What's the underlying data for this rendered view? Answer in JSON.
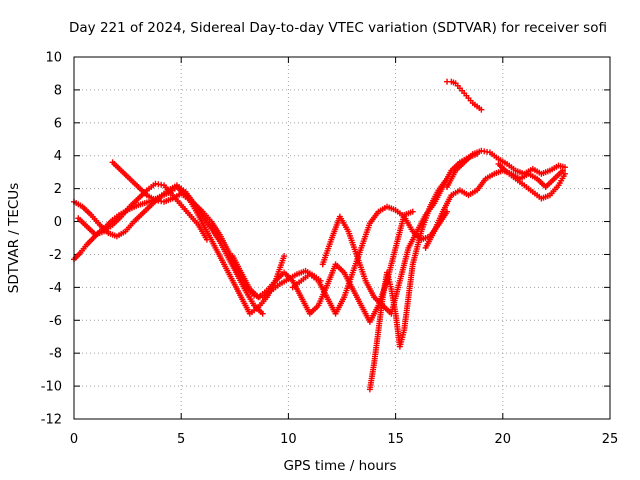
{
  "chart_data": {
    "type": "scatter",
    "title": "Day 221 of 2024, Sidereal Day-to-day VTEC variation (SDTVAR) for receiver sofi",
    "xlabel": "GPS time / hours",
    "ylabel": "SDTVAR / TECUs",
    "xlim": [
      0,
      25
    ],
    "ylim": [
      -12,
      10
    ],
    "xticks": [
      0,
      5,
      10,
      15,
      20,
      25
    ],
    "yticks": [
      -12,
      -10,
      -8,
      -6,
      -4,
      -2,
      0,
      2,
      4,
      6,
      8,
      10
    ],
    "xtick_labels": [
      "0",
      "5",
      "10",
      "15",
      "20",
      "25"
    ],
    "ytick_labels": [
      "-12",
      "-10",
      "-8",
      "-6",
      "-4",
      "-2",
      "0",
      "2",
      "4",
      "6",
      "8",
      "10"
    ],
    "grid": true,
    "marker": "+",
    "color": "#ff0000",
    "series": [
      {
        "name": "arc-1",
        "x": [
          0.0,
          0.3,
          0.6,
          0.9,
          1.2,
          1.5,
          1.8,
          2.1,
          2.5,
          3.0,
          3.5,
          4.0,
          4.5,
          4.8,
          5.2,
          5.6,
          6.0,
          6.4,
          6.8,
          7.2,
          7.6,
          8.0,
          8.4,
          8.8,
          9.2,
          9.6,
          10.0,
          10.4,
          10.8,
          11.2,
          11.5
        ],
        "y": [
          -2.3,
          -1.9,
          -1.4,
          -1.0,
          -0.6,
          -0.3,
          0.1,
          0.4,
          0.7,
          1.0,
          1.2,
          1.5,
          1.8,
          2.1,
          1.6,
          1.1,
          0.6,
          0.0,
          -0.8,
          -1.8,
          -2.9,
          -3.9,
          -4.5,
          -4.6,
          -4.2,
          -3.8,
          -3.5,
          -3.2,
          -3.0,
          -3.3,
          -3.6
        ]
      },
      {
        "name": "arc-2",
        "x": [
          0.0,
          0.4,
          0.8,
          1.2,
          1.6,
          2.0,
          2.4,
          2.8,
          3.2,
          3.6,
          4.0,
          4.4,
          4.8,
          5.2,
          5.6,
          6.0,
          6.4,
          6.8,
          7.2,
          7.6,
          8.0,
          8.4,
          8.8
        ],
        "y": [
          1.2,
          0.9,
          0.4,
          -0.2,
          -0.7,
          -0.9,
          -0.6,
          0.0,
          0.5,
          1.0,
          1.5,
          1.9,
          2.2,
          1.8,
          1.1,
          0.3,
          -0.4,
          -1.2,
          -2.2,
          -3.2,
          -4.2,
          -5.1,
          -5.6
        ]
      },
      {
        "name": "arc-3",
        "x": [
          1.8,
          2.2,
          2.6,
          3.0,
          3.4,
          3.8,
          4.2,
          4.6,
          5.0,
          5.4,
          5.8,
          6.2,
          6.6,
          7.0,
          7.4,
          7.8,
          8.2,
          8.6,
          9.0,
          9.4,
          9.8
        ],
        "y": [
          3.6,
          3.1,
          2.6,
          2.1,
          1.6,
          1.3,
          1.2,
          1.4,
          1.7,
          1.3,
          0.4,
          -0.6,
          -1.6,
          -2.6,
          -3.6,
          -4.6,
          -5.6,
          -5.2,
          -4.6,
          -3.6,
          -2.1
        ]
      },
      {
        "name": "arc-4",
        "x": [
          0.2,
          0.6,
          1.0,
          1.4,
          1.8,
          2.2,
          2.6,
          3.0,
          3.4,
          3.8,
          4.2,
          4.6,
          5.0,
          5.4,
          5.8,
          6.2
        ],
        "y": [
          0.2,
          -0.3,
          -0.8,
          -0.6,
          -0.2,
          0.3,
          0.9,
          1.4,
          1.9,
          2.3,
          2.2,
          1.6,
          1.0,
          0.4,
          -0.2,
          -1.1
        ]
      },
      {
        "name": "arc-5",
        "x": [
          7.4,
          7.8,
          8.2,
          8.6,
          9.0,
          9.4,
          9.8,
          10.2,
          10.6,
          11.0,
          11.4,
          11.8,
          12.2,
          12.6,
          13.0,
          13.4,
          13.8,
          14.2,
          14.6,
          15.0,
          15.4,
          15.8
        ],
        "y": [
          -2.1,
          -3.1,
          -4.1,
          -4.6,
          -4.2,
          -3.6,
          -3.1,
          -3.6,
          -4.6,
          -5.6,
          -5.1,
          -3.9,
          -2.6,
          -3.1,
          -4.1,
          -5.1,
          -6.1,
          -5.1,
          -3.6,
          -1.6,
          0.4,
          0.6
        ]
      },
      {
        "name": "arc-6",
        "x": [
          10.2,
          10.6,
          11.0,
          11.4,
          11.8,
          12.2,
          12.6,
          13.0,
          13.4,
          13.8,
          14.2,
          14.6,
          15.0,
          15.4,
          15.8,
          16.2,
          16.6,
          17.0,
          17.4
        ],
        "y": [
          -4.0,
          -3.6,
          -3.2,
          -3.6,
          -4.6,
          -5.6,
          -4.6,
          -3.1,
          -1.6,
          -0.1,
          0.6,
          0.9,
          0.7,
          0.3,
          -0.6,
          -1.1,
          -0.9,
          -0.2,
          0.6
        ]
      },
      {
        "name": "arc-7",
        "x": [
          11.6,
          12.0,
          12.4,
          12.8,
          13.2,
          13.6,
          14.0,
          14.4,
          14.8,
          15.2,
          15.6,
          16.0,
          16.4,
          16.8,
          17.2,
          17.6,
          18.0,
          18.4,
          18.8
        ],
        "y": [
          -2.6,
          -1.1,
          0.3,
          -0.6,
          -2.1,
          -3.6,
          -4.6,
          -5.1,
          -5.6,
          -3.6,
          -1.6,
          -0.6,
          0.4,
          1.1,
          2.1,
          3.1,
          3.6,
          3.9,
          4.1
        ]
      },
      {
        "name": "arc-8",
        "x": [
          13.8,
          14.0,
          14.2,
          14.4,
          14.6,
          14.8,
          15.0,
          15.2,
          15.4,
          15.6,
          15.8,
          16.2,
          16.6,
          17.0,
          17.4
        ],
        "y": [
          -10.2,
          -8.6,
          -6.6,
          -4.6,
          -3.1,
          -4.1,
          -5.6,
          -7.6,
          -6.6,
          -4.6,
          -2.6,
          -0.6,
          0.9,
          1.9,
          2.6
        ]
      },
      {
        "name": "arc-9",
        "x": [
          16.4,
          16.8,
          17.2,
          17.6,
          18.0,
          18.4,
          18.8,
          19.2,
          19.6,
          20.0,
          20.4,
          20.8,
          21.2,
          21.6,
          22.0,
          22.4,
          22.8
        ],
        "y": [
          -1.6,
          -0.6,
          0.6,
          1.6,
          1.9,
          1.6,
          1.9,
          2.6,
          2.9,
          3.1,
          2.9,
          2.6,
          2.9,
          2.6,
          2.1,
          2.6,
          3.1
        ]
      },
      {
        "name": "arc-10",
        "x": [
          17.4,
          17.8,
          18.2,
          18.6,
          19.0,
          19.4,
          19.8,
          20.2,
          20.6,
          21.0,
          21.4,
          21.8,
          22.2,
          22.6,
          22.9
        ],
        "y": [
          2.1,
          3.1,
          3.6,
          4.1,
          4.3,
          4.2,
          3.8,
          3.5,
          3.1,
          2.9,
          3.2,
          2.9,
          3.1,
          3.4,
          3.3
        ]
      },
      {
        "name": "arc-11",
        "x": [
          19.8,
          20.2,
          20.6,
          21.0,
          21.4,
          21.8,
          22.2,
          22.6,
          22.9
        ],
        "y": [
          3.5,
          3.0,
          2.6,
          2.2,
          1.8,
          1.4,
          1.6,
          2.2,
          2.9
        ]
      },
      {
        "name": "arc-12",
        "x": [
          17.4,
          17.6,
          17.8,
          18.0,
          18.2,
          18.4,
          18.6,
          18.8,
          19.0
        ],
        "y": [
          8.5,
          8.5,
          8.4,
          8.1,
          7.8,
          7.5,
          7.2,
          7.0,
          6.8
        ]
      }
    ]
  }
}
